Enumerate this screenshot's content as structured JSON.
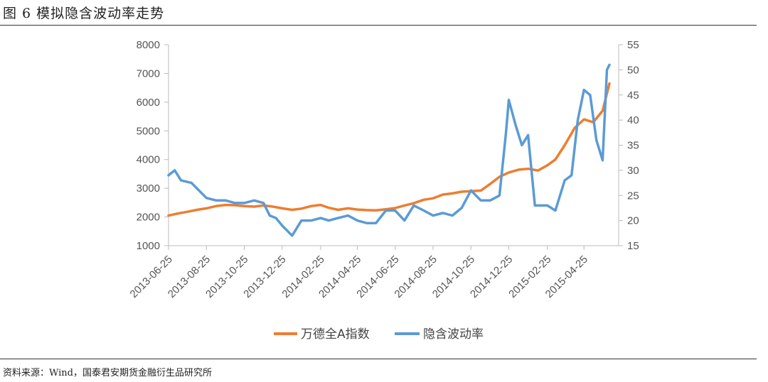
{
  "header": {
    "title": "图 6 模拟隐含波动率走势"
  },
  "footer": {
    "source": "资料来源：Wind，国泰君安期货金融衍生品研究所"
  },
  "chart_data": {
    "type": "line",
    "title": "图 6 模拟隐含波动率走势",
    "x_tick_labels": [
      "2013-06-25",
      "2013-08-25",
      "2013-10-25",
      "2013-12-25",
      "2014-02-25",
      "2014-04-25",
      "2014-06-25",
      "2014-08-25",
      "2014-10-25",
      "2014-12-25",
      "2015-02-25",
      "2015-04-25"
    ],
    "y_left": {
      "range": [
        1000,
        8000
      ],
      "ticks": [
        1000,
        2000,
        3000,
        4000,
        5000,
        6000,
        7000,
        8000
      ]
    },
    "y_right": {
      "range": [
        15,
        55
      ],
      "ticks": [
        15,
        20,
        25,
        30,
        35,
        40,
        45,
        50,
        55
      ]
    },
    "grid": false,
    "legend_position": "bottom",
    "colors": {
      "index": "#ED7D31",
      "vol": "#5B9BD5"
    },
    "series": [
      {
        "name": "万德全A指数",
        "axis": "left",
        "x": [
          "2013-06-25",
          "2013-07-10",
          "2013-07-25",
          "2013-08-10",
          "2013-08-25",
          "2013-09-10",
          "2013-09-25",
          "2013-10-10",
          "2013-10-25",
          "2013-11-10",
          "2013-11-25",
          "2013-12-10",
          "2013-12-25",
          "2014-01-10",
          "2014-01-25",
          "2014-02-10",
          "2014-02-25",
          "2014-03-10",
          "2014-03-25",
          "2014-04-10",
          "2014-04-25",
          "2014-05-10",
          "2014-05-25",
          "2014-06-10",
          "2014-06-25",
          "2014-07-10",
          "2014-07-25",
          "2014-08-10",
          "2014-08-25",
          "2014-09-10",
          "2014-09-25",
          "2014-10-10",
          "2014-10-25",
          "2014-11-10",
          "2014-11-25",
          "2014-12-10",
          "2014-12-25",
          "2015-01-10",
          "2015-01-25",
          "2015-02-10",
          "2015-02-25",
          "2015-03-10",
          "2015-03-25",
          "2015-04-10",
          "2015-04-25",
          "2015-05-10",
          "2015-05-25",
          "2015-06-05"
        ],
        "values": [
          2050,
          2120,
          2180,
          2250,
          2300,
          2380,
          2420,
          2410,
          2380,
          2360,
          2400,
          2360,
          2300,
          2250,
          2290,
          2380,
          2420,
          2320,
          2250,
          2300,
          2260,
          2240,
          2230,
          2270,
          2310,
          2400,
          2480,
          2600,
          2650,
          2780,
          2820,
          2880,
          2900,
          2920,
          3150,
          3400,
          3550,
          3650,
          3680,
          3620,
          3800,
          4000,
          4500,
          5100,
          5400,
          5300,
          5700,
          6650
        ]
      },
      {
        "name": "隐含波动率",
        "axis": "right",
        "x": [
          "2013-06-25",
          "2013-07-05",
          "2013-07-15",
          "2013-08-01",
          "2013-08-25",
          "2013-09-10",
          "2013-09-25",
          "2013-10-10",
          "2013-10-25",
          "2013-11-10",
          "2013-11-25",
          "2013-12-05",
          "2013-12-15",
          "2013-12-25",
          "2014-01-10",
          "2014-01-25",
          "2014-02-10",
          "2014-02-25",
          "2014-03-10",
          "2014-03-25",
          "2014-04-10",
          "2014-04-25",
          "2014-05-10",
          "2014-05-25",
          "2014-06-10",
          "2014-06-25",
          "2014-07-10",
          "2014-07-25",
          "2014-08-10",
          "2014-08-25",
          "2014-09-10",
          "2014-09-25",
          "2014-10-10",
          "2014-10-25",
          "2014-11-10",
          "2014-11-25",
          "2014-12-10",
          "2014-12-20",
          "2014-12-25",
          "2015-01-05",
          "2015-01-15",
          "2015-01-25",
          "2015-02-05",
          "2015-02-15",
          "2015-02-25",
          "2015-03-10",
          "2015-03-25",
          "2015-04-05",
          "2015-04-15",
          "2015-04-25",
          "2015-05-05",
          "2015-05-15",
          "2015-05-25",
          "2015-06-01",
          "2015-06-05"
        ],
        "values": [
          29,
          30,
          28,
          27.5,
          24.5,
          24,
          24,
          23.5,
          23.5,
          24,
          23.5,
          21,
          20.5,
          19,
          17,
          20,
          20,
          20.5,
          20,
          20.5,
          21,
          20,
          19.5,
          19.5,
          22,
          22,
          20,
          23,
          22,
          21,
          21.5,
          21,
          22.5,
          26,
          24,
          24,
          25,
          37,
          44,
          39,
          35,
          37,
          23,
          23,
          23,
          22,
          28,
          29,
          40,
          46,
          45,
          36,
          32,
          50,
          51
        ]
      }
    ]
  }
}
